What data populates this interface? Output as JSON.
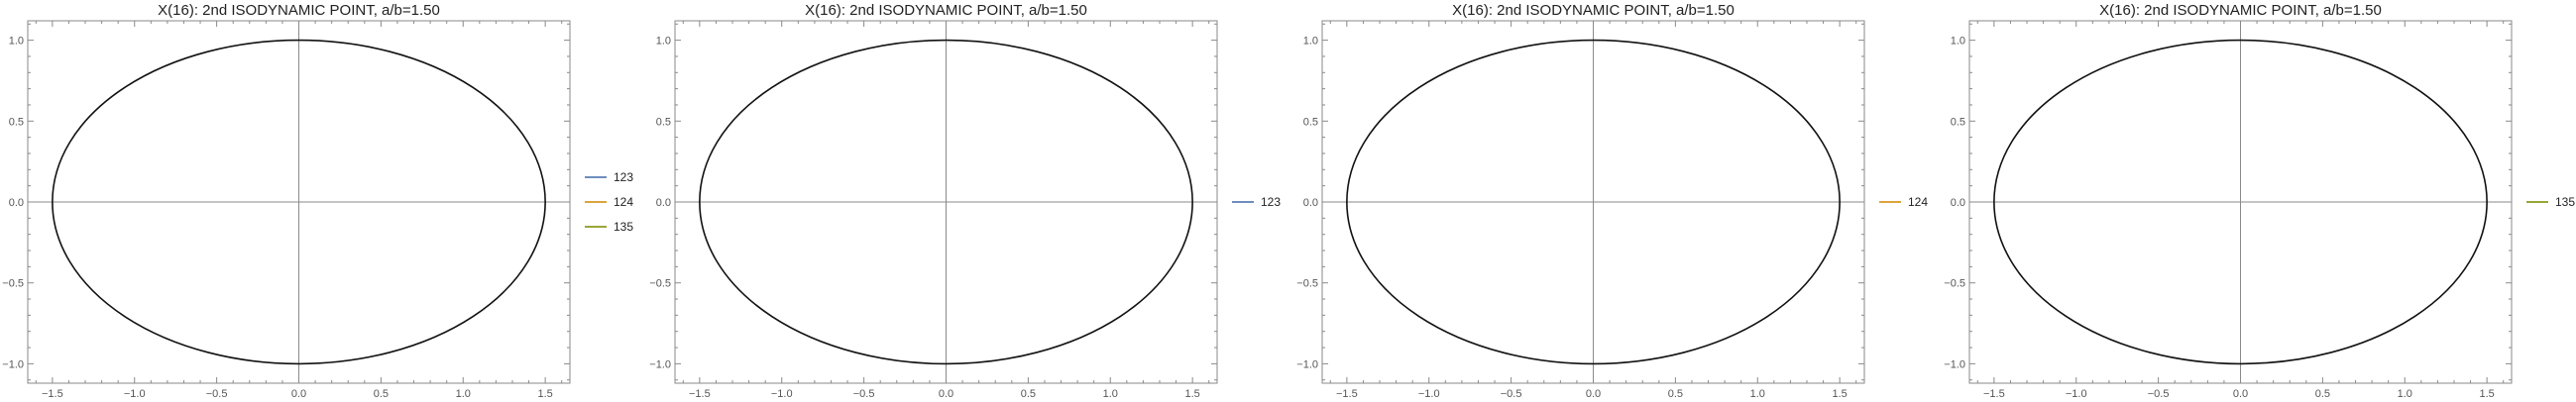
{
  "chart_data": [
    {
      "type": "line",
      "title": "X(16): 2nd ISODYNAMIC POINT, a/b=1.50",
      "xlabel": "",
      "ylabel": "",
      "xlim": [
        -1.65,
        1.65
      ],
      "ylim": [
        -1.12,
        1.12
      ],
      "x_ticks": [
        -1.5,
        -1.0,
        -0.5,
        0.0,
        0.5,
        1.0,
        1.5
      ],
      "x_tick_labels": [
        "−1.5",
        "−1.0",
        "−0.5",
        "0.0",
        "0.5",
        "1.0",
        "1.5"
      ],
      "y_ticks": [
        -1.0,
        -0.5,
        0.0,
        0.5,
        1.0
      ],
      "y_tick_labels": [
        "−1.0",
        "−0.5",
        "0.0",
        "0.5",
        "1.0"
      ],
      "grid": false,
      "axes_through_origin": true,
      "shape": {
        "kind": "ellipse",
        "center": [
          0,
          0
        ],
        "semi_x": 1.5,
        "semi_y": 1.0,
        "color": "#111111"
      },
      "legend_position": "right",
      "series": [
        {
          "name": "123",
          "color": "#5a7db5"
        },
        {
          "name": "124",
          "color": "#d9961f"
        },
        {
          "name": "135",
          "color": "#8c9a1c"
        }
      ]
    },
    {
      "type": "line",
      "title": "X(16): 2nd ISODYNAMIC POINT, a/b=1.50",
      "xlabel": "",
      "ylabel": "",
      "xlim": [
        -1.65,
        1.65
      ],
      "ylim": [
        -1.12,
        1.12
      ],
      "x_ticks": [
        -1.5,
        -1.0,
        -0.5,
        0.0,
        0.5,
        1.0,
        1.5
      ],
      "x_tick_labels": [
        "−1.5",
        "−1.0",
        "−0.5",
        "0.0",
        "0.5",
        "1.0",
        "1.5"
      ],
      "y_ticks": [
        -1.0,
        -0.5,
        0.0,
        0.5,
        1.0
      ],
      "y_tick_labels": [
        "−1.0",
        "−0.5",
        "0.0",
        "0.5",
        "1.0"
      ],
      "grid": false,
      "axes_through_origin": true,
      "shape": {
        "kind": "ellipse",
        "center": [
          0,
          0
        ],
        "semi_x": 1.5,
        "semi_y": 1.0,
        "color": "#111111"
      },
      "legend_position": "right",
      "series": [
        {
          "name": "123",
          "color": "#5a7db5"
        }
      ]
    },
    {
      "type": "line",
      "title": "X(16): 2nd ISODYNAMIC POINT, a/b=1.50",
      "xlabel": "",
      "ylabel": "",
      "xlim": [
        -1.65,
        1.65
      ],
      "ylim": [
        -1.12,
        1.12
      ],
      "x_ticks": [
        -1.5,
        -1.0,
        -0.5,
        0.0,
        0.5,
        1.0,
        1.5
      ],
      "x_tick_labels": [
        "−1.5",
        "−1.0",
        "−0.5",
        "0.0",
        "0.5",
        "1.0",
        "1.5"
      ],
      "y_ticks": [
        -1.0,
        -0.5,
        0.0,
        0.5,
        1.0
      ],
      "y_tick_labels": [
        "−1.0",
        "−0.5",
        "0.0",
        "0.5",
        "1.0"
      ],
      "grid": false,
      "axes_through_origin": true,
      "shape": {
        "kind": "ellipse",
        "center": [
          0,
          0
        ],
        "semi_x": 1.5,
        "semi_y": 1.0,
        "color": "#111111"
      },
      "legend_position": "right",
      "series": [
        {
          "name": "124",
          "color": "#d9961f"
        }
      ]
    },
    {
      "type": "line",
      "title": "X(16): 2nd ISODYNAMIC POINT, a/b=1.50",
      "xlabel": "",
      "ylabel": "",
      "xlim": [
        -1.65,
        1.65
      ],
      "ylim": [
        -1.12,
        1.12
      ],
      "x_ticks": [
        -1.5,
        -1.0,
        -0.5,
        0.0,
        0.5,
        1.0,
        1.5
      ],
      "x_tick_labels": [
        "−1.5",
        "−1.0",
        "−0.5",
        "0.0",
        "0.5",
        "1.0",
        "1.5"
      ],
      "y_ticks": [
        -1.0,
        -0.5,
        0.0,
        0.5,
        1.0
      ],
      "y_tick_labels": [
        "−1.0",
        "−0.5",
        "0.0",
        "0.5",
        "1.0"
      ],
      "grid": false,
      "axes_through_origin": true,
      "shape": {
        "kind": "ellipse",
        "center": [
          0,
          0
        ],
        "semi_x": 1.5,
        "semi_y": 1.0,
        "color": "#111111"
      },
      "legend_position": "right",
      "series": [
        {
          "name": "135",
          "color": "#8c9a1c"
        }
      ]
    }
  ]
}
